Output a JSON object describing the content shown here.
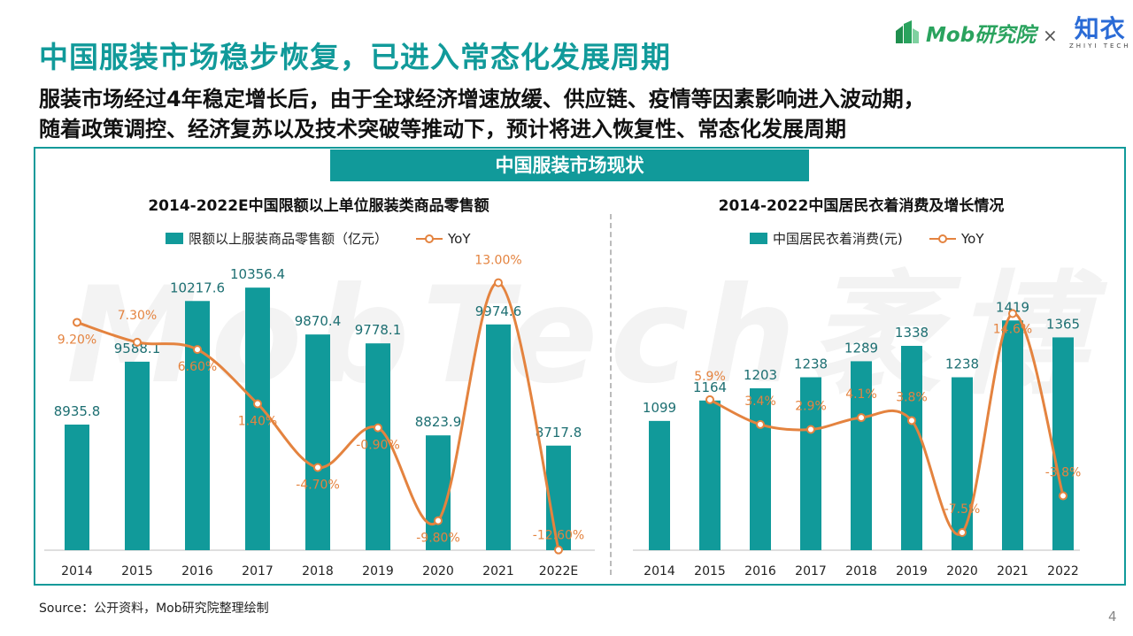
{
  "header": {
    "title": "中国服装市场稳步恢复，已进入常态化发展周期",
    "subtitle_line1": "服装市场经过4年稳定增长后，由于全球经济增速放缓、供应链、疫情等因素影响进入波动期，",
    "subtitle_line2": "随着政策调控、经济复苏以及技术突破等推动下，预计将进入恢复性、常态化发展周期"
  },
  "logos": {
    "mob": "Mob研究院",
    "times": "×",
    "zhiyi": "知衣",
    "zhiyi_sub": "ZHIYI TECH"
  },
  "watermark": "MobTech袤博",
  "banner": "中国服装市场现状",
  "colors": {
    "accent": "#119a9a",
    "bar": "#119a9a",
    "line": "#e4833f"
  },
  "chart_data": [
    {
      "type": "bar",
      "title": "2014-2022E中国限额以上单位服装类商品零售额",
      "categories": [
        "2014",
        "2015",
        "2016",
        "2017",
        "2018",
        "2019",
        "2020",
        "2021",
        "2022E"
      ],
      "series": [
        {
          "name": "限额以上服装商品零售额（亿元）",
          "type": "bar",
          "values": [
            8935.8,
            9588.1,
            10217.6,
            10356.4,
            9870.4,
            9778.1,
            8823.9,
            9974.6,
            8717.8
          ],
          "labels": [
            "8935.8",
            "9588.1",
            "10217.6",
            "10356.4",
            "9870.4",
            "9778.1",
            "8823.9",
            "9974.6",
            "8717.8"
          ]
        },
        {
          "name": "YoY",
          "type": "line",
          "values": [
            9.2,
            7.3,
            6.6,
            1.4,
            -4.7,
            -0.9,
            -9.8,
            13.0,
            -12.6
          ],
          "labels": [
            "9.20%",
            "7.30%",
            "6.60%",
            "1.40%",
            "-4.70%",
            "-0.90%",
            "-9.80%",
            "13.00%",
            "-12.60%"
          ]
        }
      ],
      "legend": "top"
    },
    {
      "type": "bar",
      "title": "2014-2022中国居民衣着消费及增长情况",
      "categories": [
        "2014",
        "2015",
        "2016",
        "2017",
        "2018",
        "2019",
        "2020",
        "2021",
        "2022"
      ],
      "series": [
        {
          "name": "中国居民衣着消费(元)",
          "type": "bar",
          "values": [
            1099,
            1164,
            1203,
            1238,
            1289,
            1338,
            1238,
            1419,
            1365
          ],
          "labels": [
            "1099",
            "1164",
            "1203",
            "1238",
            "1289",
            "1338",
            "1238",
            "1419",
            "1365"
          ]
        },
        {
          "name": "YoY",
          "type": "line",
          "values": [
            null,
            5.9,
            3.4,
            2.9,
            4.1,
            3.8,
            -7.5,
            14.6,
            -3.8
          ],
          "labels": [
            null,
            "5.9%",
            "3.4%",
            "2.9%",
            "4.1%",
            "3.8%",
            "-7.5%",
            "14.6%",
            "-3.8%"
          ]
        }
      ],
      "legend": "top"
    }
  ],
  "footer": {
    "source": "Source：公开资料，Mob研究院整理绘制",
    "page": "4"
  }
}
